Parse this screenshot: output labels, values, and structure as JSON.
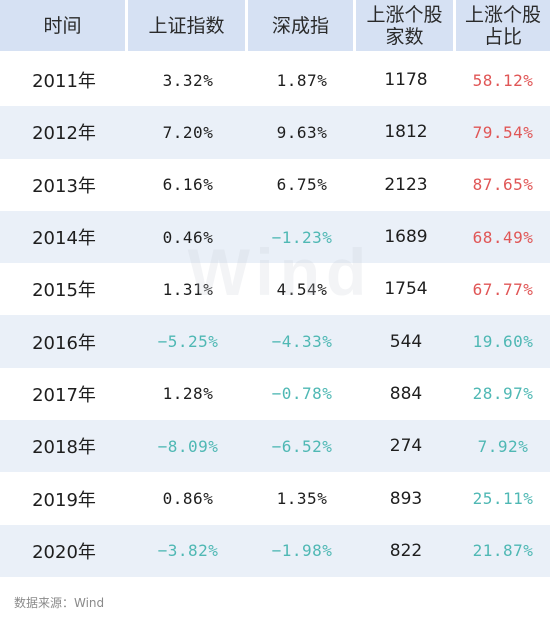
{
  "headers": [
    "时间",
    "上证指数",
    "深成指",
    "上涨个股\n家数",
    "上涨个股\n占比"
  ],
  "rows": [
    {
      "year": "2011年",
      "sh": "3.32%",
      "sz": "1.87%",
      "count": "1178",
      "ratio": "58.12%"
    },
    {
      "year": "2012年",
      "sh": "7.20%",
      "sz": "9.63%",
      "count": "1812",
      "ratio": "79.54%"
    },
    {
      "year": "2013年",
      "sh": "6.16%",
      "sz": "6.75%",
      "count": "2123",
      "ratio": "87.65%"
    },
    {
      "year": "2014年",
      "sh": "0.46%",
      "sz": "−1.23%",
      "count": "1689",
      "ratio": "68.49%"
    },
    {
      "year": "2015年",
      "sh": "1.31%",
      "sz": "4.54%",
      "count": "1754",
      "ratio": "67.77%"
    },
    {
      "year": "2016年",
      "sh": "−5.25%",
      "sz": "−4.33%",
      "count": "544",
      "ratio": "19.60%"
    },
    {
      "year": "2017年",
      "sh": "1.28%",
      "sz": "−0.78%",
      "count": "884",
      "ratio": "28.97%"
    },
    {
      "year": "2018年",
      "sh": "−8.09%",
      "sz": "−6.52%",
      "count": "274",
      "ratio": "7.92%"
    },
    {
      "year": "2019年",
      "sh": "0.86%",
      "sz": "1.35%",
      "count": "893",
      "ratio": "25.11%"
    },
    {
      "year": "2020年",
      "sh": "−3.82%",
      "sz": "−1.98%",
      "count": "822",
      "ratio": "21.87%"
    }
  ],
  "watermark": "Wind",
  "source": "数据来源：Wind",
  "colors": {
    "header_bg": "#d6e1f3",
    "stripe_bg": "#eaf0f8",
    "negative": "#4fb8b4",
    "ratio_high": "#e05656",
    "ratio_low": "#4fb8b4"
  }
}
